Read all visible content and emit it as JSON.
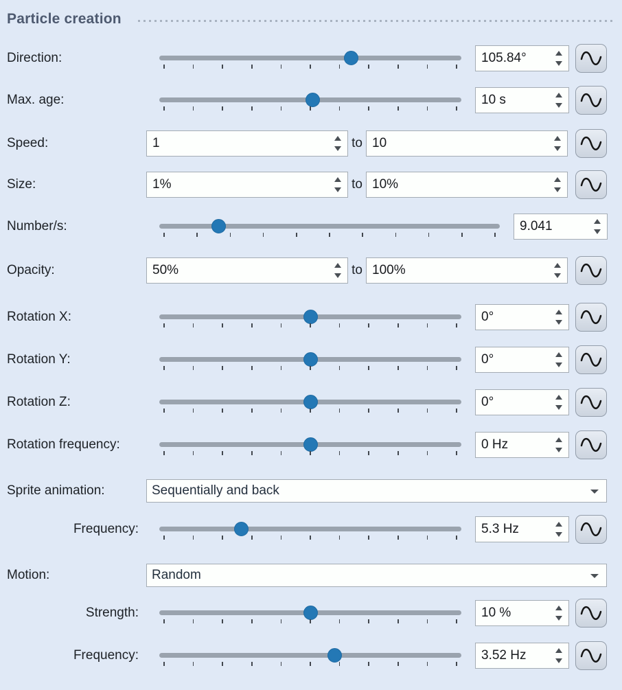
{
  "panel": {
    "title": "Particle creation"
  },
  "colors": {
    "background": "#e0e9f6",
    "accent_thumb": "#2478b5",
    "slider_track": "#9aa3ae",
    "field_background": "#fdfffd",
    "field_border": "#a4acb4",
    "header_text": "#4e5a70"
  },
  "labels": {
    "range_separator": "to"
  },
  "icons": {
    "wave_button": "sine-wave-icon",
    "spinner_up": "triangle-up-icon",
    "spinner_down": "triangle-down-icon",
    "dropdown_arrow": "triangle-down-icon"
  },
  "rows": [
    {
      "id": "direction",
      "label": "Direction:",
      "type": "slider",
      "value": "105.84°",
      "thumb_percent": 63.4,
      "wave": true
    },
    {
      "id": "max-age",
      "label": "Max. age:",
      "type": "slider",
      "value": "10 s",
      "thumb_percent": 50.7,
      "wave": true
    },
    {
      "id": "speed",
      "label": "Speed:",
      "type": "range",
      "from": "1",
      "to": "10",
      "wave": true
    },
    {
      "id": "size",
      "label": "Size:",
      "type": "range",
      "from": "1%",
      "to": "10%",
      "wave": true
    },
    {
      "id": "number-per-second",
      "label": "Number/s:",
      "type": "slider",
      "value": "9.041",
      "thumb_percent": 17.3,
      "wave": false
    },
    {
      "id": "opacity",
      "label": "Opacity:",
      "type": "range",
      "from": "50%",
      "to": "100%",
      "wave": true
    },
    {
      "id": "rotation-x",
      "label": "Rotation X:",
      "type": "slider",
      "value": "0°",
      "thumb_percent": 50,
      "wave": true
    },
    {
      "id": "rotation-y",
      "label": "Rotation Y:",
      "type": "slider",
      "value": "0°",
      "thumb_percent": 50,
      "wave": true
    },
    {
      "id": "rotation-z",
      "label": "Rotation Z:",
      "type": "slider",
      "value": "0°",
      "thumb_percent": 50,
      "wave": true
    },
    {
      "id": "rotation-frequency",
      "label": "Rotation frequency:",
      "type": "slider",
      "value": "0 Hz",
      "thumb_percent": 50,
      "wave": true
    },
    {
      "id": "sprite-animation",
      "label": "Sprite animation:",
      "type": "dropdown",
      "value": "Sequentially and back"
    },
    {
      "id": "sprite-frequency",
      "label": "Frequency:",
      "type": "slider",
      "value": "5.3 Hz",
      "thumb_percent": 27,
      "wave": true,
      "indented": true
    },
    {
      "id": "motion",
      "label": "Motion:",
      "type": "dropdown",
      "value": "Random"
    },
    {
      "id": "motion-strength",
      "label": "Strength:",
      "type": "slider",
      "value": "10 %",
      "thumb_percent": 50,
      "wave": true,
      "indented": true
    },
    {
      "id": "motion-frequency",
      "label": "Frequency:",
      "type": "slider",
      "value": "3.52 Hz",
      "thumb_percent": 58,
      "wave": true,
      "indented": true
    }
  ]
}
